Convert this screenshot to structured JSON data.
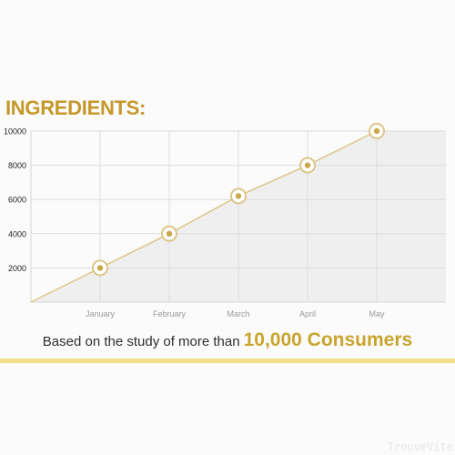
{
  "heading": "INGREDIENTS:",
  "caption": {
    "prefix": "Based on the study of more than",
    "highlight": "10,000 Consumers"
  },
  "watermark": "TrouveVite",
  "colors": {
    "accent": "#c6982a",
    "line": "#dcc687",
    "grid": "#dddddd",
    "area": "#efefef"
  },
  "chart_data": {
    "type": "line",
    "categories": [
      "January",
      "February",
      "March",
      "April",
      "May"
    ],
    "values": [
      2000,
      4000,
      6200,
      8000,
      10000
    ],
    "y_ticks": [
      2000,
      4000,
      6000,
      8000,
      10000
    ],
    "ylim": [
      0,
      10000
    ],
    "grid": true,
    "area_fill": true
  }
}
